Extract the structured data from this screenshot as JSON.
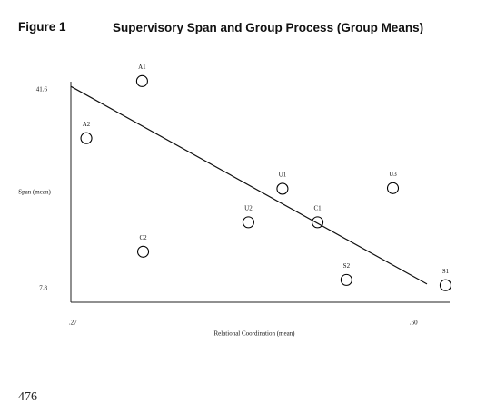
{
  "figure_label": "Figure 1",
  "chart_data": {
    "type": "scatter",
    "title": "Supervisory Span and Group Process (Group Means)",
    "x_label": "Relational Coordination (mean)",
    "y_label": "Span (mean)",
    "x": [
      0.337,
      0.283,
      0.338,
      0.44,
      0.473,
      0.507,
      0.58,
      0.535,
      0.631
    ],
    "values": [
      43.1,
      33.4,
      14.1,
      19.1,
      24.8,
      19.1,
      24.9,
      9.3,
      8.4
    ],
    "point_labels": [
      "A1",
      "A2",
      "C2",
      "U2",
      "U1",
      "C1",
      "U3",
      "S2",
      "S1"
    ],
    "color": "#000000",
    "trend_line": {
      "x": [
        0.268,
        0.613
      ],
      "y": [
        42.2,
        8.6
      ]
    },
    "xlim": [
      0.268,
      0.635
    ],
    "ylim": [
      5.5,
      43.0
    ],
    "xticks": [
      {
        "value": 0.27,
        "label": ".27"
      },
      {
        "value": 0.6,
        "label": ".60"
      }
    ],
    "yticks": [
      41.6,
      7.8
    ]
  },
  "page_number": "476"
}
